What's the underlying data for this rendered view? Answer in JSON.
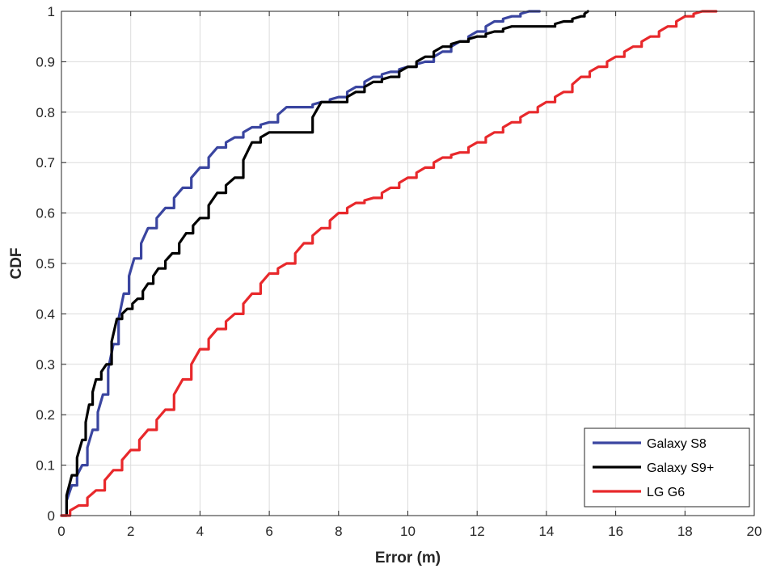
{
  "chart_data": {
    "type": "line",
    "title": "",
    "xlabel": "Error (m)",
    "ylabel": "CDF",
    "xlim": [
      0,
      20
    ],
    "ylim": [
      0,
      1
    ],
    "xticks": [
      0,
      2,
      4,
      6,
      8,
      10,
      12,
      14,
      16,
      18,
      20
    ],
    "yticks": [
      0,
      0.1,
      0.2,
      0.3,
      0.4,
      0.5,
      0.6,
      0.7,
      0.8,
      0.9,
      1
    ],
    "grid": true,
    "legend_position": "bottom-right",
    "series": [
      {
        "name": "Galaxy S8",
        "color": "#3a45a0",
        "x": [
          0,
          0.3,
          0.6,
          0.9,
          1.2,
          1.5,
          1.8,
          2.1,
          2.5,
          3.0,
          3.5,
          4.0,
          4.5,
          5.0,
          5.5,
          6.0,
          6.5,
          7.0,
          7.5,
          8.0,
          8.5,
          9.0,
          9.5,
          10.0,
          10.5,
          11.0,
          11.5,
          12.0,
          12.5,
          13.0,
          13.5,
          13.8
        ],
        "y": [
          0,
          0.06,
          0.1,
          0.17,
          0.24,
          0.34,
          0.44,
          0.51,
          0.57,
          0.61,
          0.65,
          0.69,
          0.73,
          0.75,
          0.77,
          0.78,
          0.81,
          0.81,
          0.82,
          0.83,
          0.85,
          0.87,
          0.88,
          0.89,
          0.9,
          0.92,
          0.94,
          0.96,
          0.98,
          0.99,
          1.0,
          1.0
        ]
      },
      {
        "name": "Galaxy S9+",
        "color": "#000000",
        "x": [
          0,
          0.3,
          0.6,
          0.8,
          1.0,
          1.3,
          1.6,
          1.9,
          2.2,
          2.5,
          2.8,
          3.2,
          3.6,
          4.0,
          4.5,
          5.0,
          5.5,
          6.0,
          6.5,
          7.0,
          7.5,
          8.0,
          8.5,
          9.0,
          9.5,
          10.0,
          10.5,
          11.0,
          11.5,
          12.0,
          12.5,
          13.0,
          13.5,
          14.0,
          14.5,
          15.0,
          15.2
        ],
        "y": [
          0,
          0.08,
          0.15,
          0.22,
          0.27,
          0.3,
          0.39,
          0.41,
          0.43,
          0.46,
          0.49,
          0.52,
          0.56,
          0.59,
          0.64,
          0.67,
          0.74,
          0.76,
          0.76,
          0.76,
          0.82,
          0.82,
          0.84,
          0.86,
          0.87,
          0.89,
          0.91,
          0.93,
          0.94,
          0.95,
          0.96,
          0.97,
          0.97,
          0.97,
          0.98,
          0.99,
          1.0
        ]
      },
      {
        "name": "LG G6",
        "color": "#e8282b",
        "x": [
          0,
          0.5,
          1.0,
          1.5,
          2.0,
          2.5,
          3.0,
          3.5,
          4.0,
          4.5,
          5.0,
          5.5,
          6.0,
          6.5,
          7.0,
          7.5,
          8.0,
          8.5,
          9.0,
          9.5,
          10.0,
          10.5,
          11.0,
          11.5,
          12.0,
          12.5,
          13.0,
          13.5,
          14.0,
          14.5,
          15.0,
          15.5,
          16.0,
          16.5,
          17.0,
          17.5,
          18.0,
          18.5,
          18.9
        ],
        "y": [
          0,
          0.02,
          0.05,
          0.09,
          0.13,
          0.17,
          0.21,
          0.27,
          0.33,
          0.37,
          0.4,
          0.44,
          0.48,
          0.5,
          0.54,
          0.57,
          0.6,
          0.62,
          0.63,
          0.65,
          0.67,
          0.69,
          0.71,
          0.72,
          0.74,
          0.76,
          0.78,
          0.8,
          0.82,
          0.84,
          0.87,
          0.89,
          0.91,
          0.93,
          0.95,
          0.97,
          0.99,
          1.0,
          1.0
        ]
      }
    ]
  }
}
